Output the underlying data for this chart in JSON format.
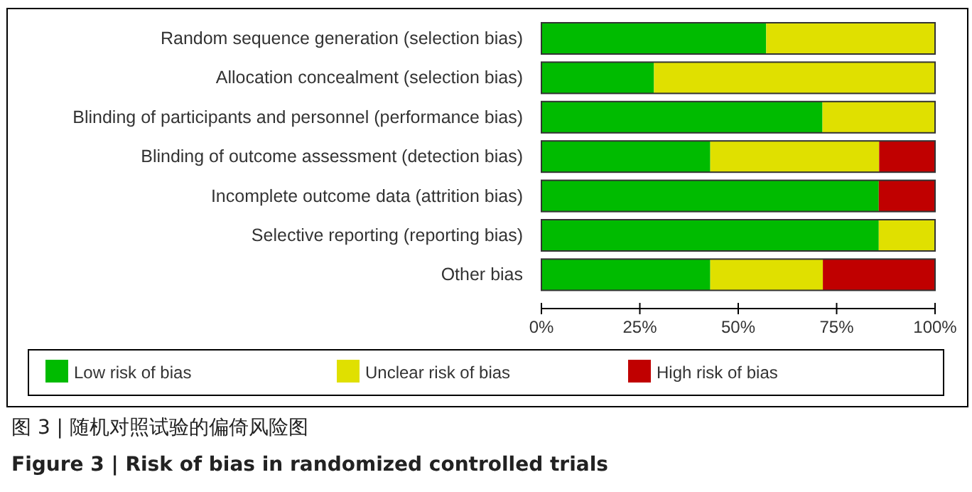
{
  "chart_data": {
    "type": "bar",
    "orientation": "horizontal",
    "stacked": true,
    "categories": [
      "Random sequence generation (selection bias)",
      "Allocation concealment (selection bias)",
      "Blinding of participants and personnel (performance bias)",
      "Blinding of outcome assessment (detection bias)",
      "Incomplete outcome data (attrition bias)",
      "Selective reporting (reporting bias)",
      "Other bias"
    ],
    "series": [
      {
        "name": "Low risk of bias",
        "color": "#00bb00",
        "values": [
          57.1,
          28.6,
          71.4,
          42.9,
          85.7,
          85.7,
          42.9
        ]
      },
      {
        "name": "Unclear risk of bias",
        "color": "#e0e000",
        "values": [
          42.9,
          71.4,
          28.6,
          42.9,
          0,
          14.3,
          28.6
        ]
      },
      {
        "name": "High risk of bias",
        "color": "#c00000",
        "values": [
          0,
          0,
          0,
          14.3,
          14.3,
          0,
          28.6
        ]
      }
    ],
    "xlim": [
      0,
      100
    ],
    "xticks": [
      {
        "value": 0,
        "label": "0%"
      },
      {
        "value": 25,
        "label": "25%"
      },
      {
        "value": 50,
        "label": "50%"
      },
      {
        "value": 75,
        "label": "75%"
      },
      {
        "value": 100,
        "label": "100%"
      }
    ],
    "legend": "bottom",
    "grid": false,
    "annotations": [
      "图 3 | 随机对照试验的偏倚风险图",
      "Figure 3 | Risk of bias in randomized controlled trials"
    ]
  }
}
